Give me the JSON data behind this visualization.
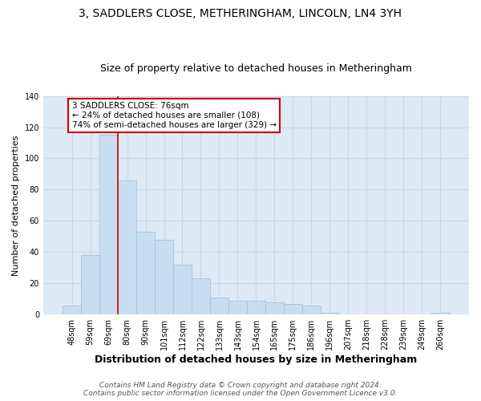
{
  "title": "3, SADDLERS CLOSE, METHERINGHAM, LINCOLN, LN4 3YH",
  "subtitle": "Size of property relative to detached houses in Metheringham",
  "xlabel": "Distribution of detached houses by size in Metheringham",
  "ylabel": "Number of detached properties",
  "bar_labels": [
    "48sqm",
    "59sqm",
    "69sqm",
    "80sqm",
    "90sqm",
    "101sqm",
    "112sqm",
    "122sqm",
    "133sqm",
    "143sqm",
    "154sqm",
    "165sqm",
    "175sqm",
    "186sqm",
    "196sqm",
    "207sqm",
    "218sqm",
    "228sqm",
    "239sqm",
    "249sqm",
    "260sqm"
  ],
  "bar_values": [
    6,
    38,
    115,
    86,
    53,
    48,
    32,
    23,
    11,
    9,
    9,
    8,
    7,
    6,
    1,
    0,
    0,
    0,
    0,
    0,
    1
  ],
  "bar_color": "#c9ddf0",
  "bar_edge_color": "#a8c4e0",
  "highlight_line_color": "#cc0000",
  "ylim": [
    0,
    140
  ],
  "yticks": [
    0,
    20,
    40,
    60,
    80,
    100,
    120,
    140
  ],
  "annotation_title": "3 SADDLERS CLOSE: 76sqm",
  "annotation_line1": "← 24% of detached houses are smaller (108)",
  "annotation_line2": "74% of semi-detached houses are larger (329) →",
  "annotation_box_color": "#ffffff",
  "annotation_border_color": "#cc0000",
  "footer_line1": "Contains HM Land Registry data © Crown copyright and database right 2024.",
  "footer_line2": "Contains public sector information licensed under the Open Government Licence v3.0.",
  "background_color": "#dde9f5",
  "grid_color": "#c8d8e8",
  "title_fontsize": 10,
  "subtitle_fontsize": 9,
  "xlabel_fontsize": 9,
  "ylabel_fontsize": 8,
  "tick_fontsize": 7,
  "annotation_fontsize": 7.5,
  "footer_fontsize": 6.5
}
